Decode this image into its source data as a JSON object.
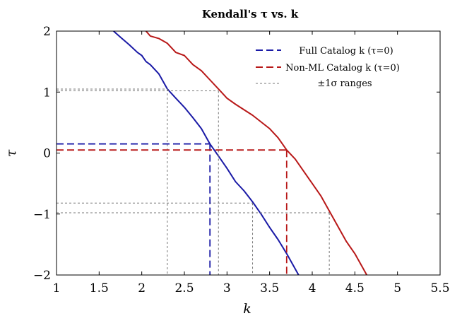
{
  "chart_data": {
    "type": "line",
    "title": "Kendall's τ vs. k",
    "xlabel": "k",
    "ylabel": "τ",
    "xlim": [
      1,
      5.5
    ],
    "ylim": [
      -2,
      2
    ],
    "xticks": [
      1,
      1.5,
      2,
      2.5,
      3,
      3.5,
      4,
      4.5,
      5,
      5.5
    ],
    "xtick_labels": [
      "1",
      "1.5",
      "2",
      "2.5",
      "3",
      "3.5",
      "4",
      "4.5",
      "5",
      "5.5"
    ],
    "yticks": [
      -2,
      -1,
      0,
      1,
      2
    ],
    "ytick_labels": [
      "−2",
      "−1",
      "0",
      "1",
      "2"
    ],
    "grid": false,
    "legend_position": "top-right",
    "legend": [
      {
        "label": "Full Catalog k (τ=0)",
        "color": "#1a1aa6",
        "dash": "long"
      },
      {
        "label": "Non-ML Catalog k (τ=0)",
        "color": "#b81818",
        "dash": "long"
      },
      {
        "label": "±1σ ranges",
        "color": "#777777",
        "dash": "short"
      }
    ],
    "series": [
      {
        "color": "#1a1aa6",
        "points": [
          [
            1.67,
            2.0
          ],
          [
            1.75,
            1.9
          ],
          [
            1.85,
            1.78
          ],
          [
            1.95,
            1.65
          ],
          [
            2.0,
            1.6
          ],
          [
            2.05,
            1.5
          ],
          [
            2.1,
            1.45
          ],
          [
            2.2,
            1.3
          ],
          [
            2.3,
            1.05
          ],
          [
            2.4,
            0.9
          ],
          [
            2.5,
            0.75
          ],
          [
            2.6,
            0.58
          ],
          [
            2.7,
            0.4
          ],
          [
            2.8,
            0.15
          ],
          [
            2.9,
            -0.05
          ],
          [
            3.0,
            -0.25
          ],
          [
            3.1,
            -0.47
          ],
          [
            3.2,
            -0.62
          ],
          [
            3.3,
            -0.8
          ],
          [
            3.4,
            -1.0
          ],
          [
            3.5,
            -1.22
          ],
          [
            3.6,
            -1.42
          ],
          [
            3.7,
            -1.65
          ],
          [
            3.8,
            -1.9
          ],
          [
            3.84,
            -2.0
          ]
        ]
      },
      {
        "color": "#b81818",
        "points": [
          [
            2.05,
            2.0
          ],
          [
            2.1,
            1.92
          ],
          [
            2.2,
            1.88
          ],
          [
            2.3,
            1.8
          ],
          [
            2.4,
            1.65
          ],
          [
            2.5,
            1.6
          ],
          [
            2.6,
            1.45
          ],
          [
            2.7,
            1.35
          ],
          [
            2.8,
            1.2
          ],
          [
            2.9,
            1.05
          ],
          [
            3.0,
            0.9
          ],
          [
            3.1,
            0.8
          ],
          [
            3.3,
            0.62
          ],
          [
            3.5,
            0.4
          ],
          [
            3.6,
            0.25
          ],
          [
            3.7,
            0.05
          ],
          [
            3.8,
            -0.1
          ],
          [
            4.0,
            -0.5
          ],
          [
            4.1,
            -0.7
          ],
          [
            4.2,
            -0.95
          ],
          [
            4.3,
            -1.2
          ],
          [
            4.4,
            -1.45
          ],
          [
            4.5,
            -1.65
          ],
          [
            4.6,
            -1.9
          ],
          [
            4.64,
            -2.0
          ]
        ]
      }
    ],
    "markers": {
      "full_k": {
        "x": 2.8,
        "y": 0.15,
        "color": "#1a1aa6"
      },
      "nonml_k": {
        "x": 3.7,
        "y": 0.05,
        "color": "#b81818"
      },
      "ranges_color": "#777777",
      "ranges": [
        {
          "x": 2.3,
          "y": 1.05
        },
        {
          "x": 2.9,
          "y": 1.02
        },
        {
          "x": 3.3,
          "y": -0.82
        },
        {
          "x": 4.2,
          "y": -0.98
        }
      ]
    }
  }
}
